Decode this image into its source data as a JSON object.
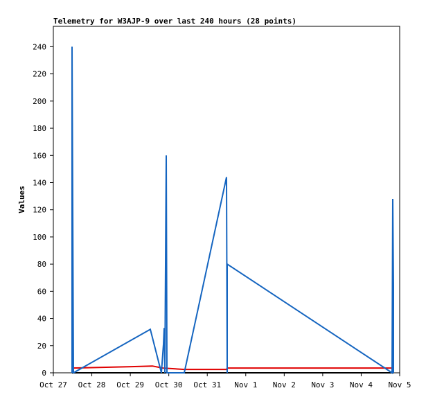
{
  "chart_data": {
    "type": "line",
    "title": "Telemetry for W3AJP-9 over last 240 hours (28 points)",
    "y_label": "Values",
    "xlim": [
      0,
      9
    ],
    "xticks": [
      {
        "value": 0,
        "label": "Oct 27"
      },
      {
        "value": 1,
        "label": "Oct 28"
      },
      {
        "value": 2,
        "label": "Oct 29"
      },
      {
        "value": 3,
        "label": "Oct 30"
      },
      {
        "value": 4,
        "label": "Oct 31"
      },
      {
        "value": 5,
        "label": "Nov 1"
      },
      {
        "value": 6,
        "label": "Nov 2"
      },
      {
        "value": 7,
        "label": "Nov 3"
      },
      {
        "value": 8,
        "label": "Nov 4"
      },
      {
        "value": 9,
        "label": "Nov 5"
      }
    ],
    "ylim": [
      0,
      255
    ],
    "yticks": [
      0,
      20,
      40,
      60,
      80,
      100,
      120,
      140,
      160,
      180,
      200,
      220,
      240
    ],
    "series": [
      {
        "color": "#000000",
        "x": [
          0.486,
          8.838
        ],
        "values": [
          0,
          0
        ]
      },
      {
        "color": "#e00000",
        "x": [
          0.486,
          2.034,
          2.574,
          2.844,
          3.402,
          4.5,
          4.518,
          8.802
        ],
        "values": [
          3.5,
          4.5,
          5,
          3.5,
          2.5,
          2.5,
          3.5,
          3.5
        ]
      },
      {
        "color": "#1565c0",
        "x": [
          0.486,
          0.486,
          0.504,
          0.522,
          2.52,
          2.808,
          2.862,
          2.88,
          2.898,
          2.916,
          2.934,
          2.952,
          3.402,
          4.5,
          4.518,
          4.518,
          8.802,
          8.82,
          8.838,
          8.838
        ],
        "values": [
          0,
          240,
          121,
          0,
          32,
          0,
          21,
          33,
          0,
          80,
          160,
          0,
          0,
          144,
          0,
          80,
          0,
          128,
          64,
          0
        ]
      }
    ]
  }
}
